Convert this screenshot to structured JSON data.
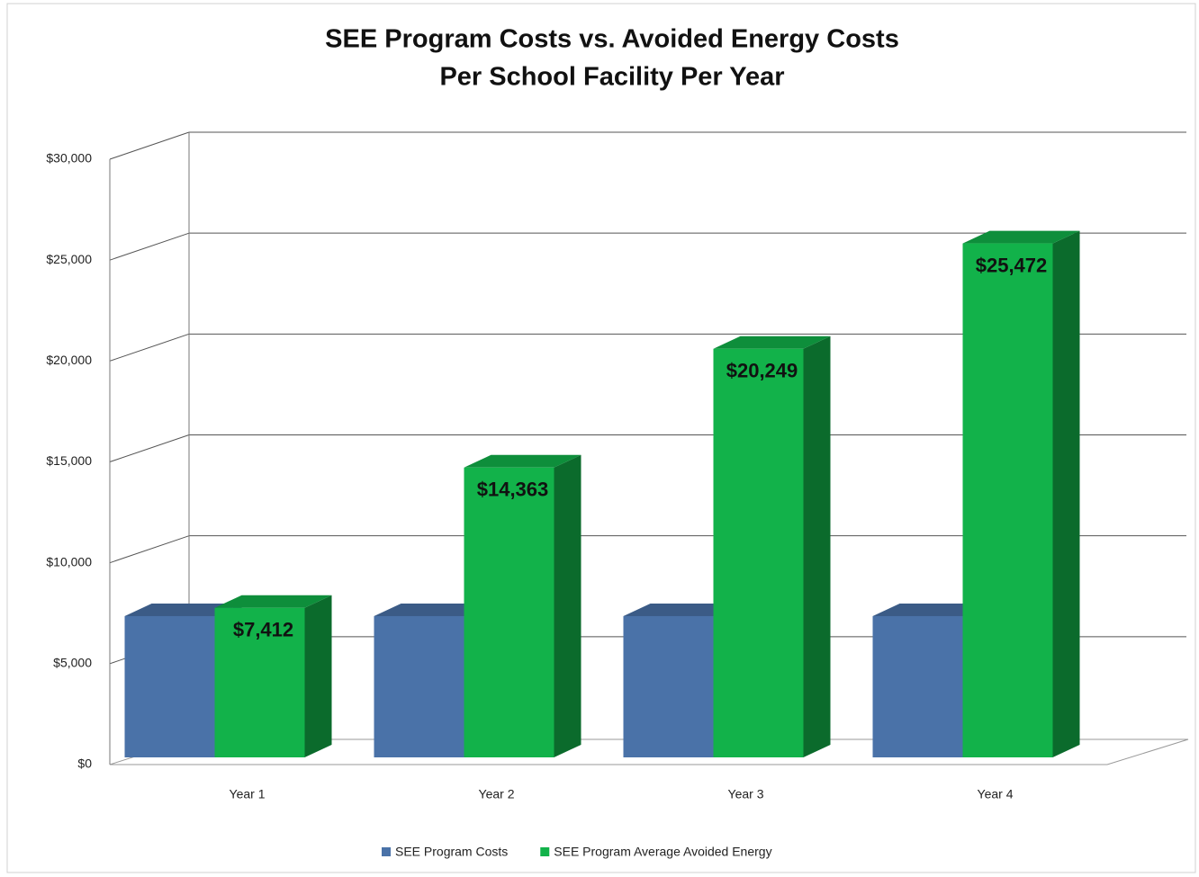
{
  "chart_data": {
    "type": "bar3d",
    "title": [
      "SEE Program Costs vs. Avoided Energy Costs",
      "Per School Facility Per Year"
    ],
    "categories": [
      "Year 1",
      "Year 2",
      "Year 3",
      "Year 4"
    ],
    "series": [
      {
        "name": "SEE Program Costs",
        "color": "#4a72a8",
        "values": [
          7000,
          7000,
          7000,
          7000
        ]
      },
      {
        "name": "SEE Program Average Avoided Energy",
        "color": "#12b24a",
        "values": [
          7412,
          14363,
          20249,
          25472
        ],
        "value_labels": [
          "$7,412",
          "$14,363",
          "$20,249",
          "$25,472"
        ]
      }
    ],
    "ylim": [
      0,
      30000
    ],
    "yticks": [
      {
        "value": 0,
        "label": "$0"
      },
      {
        "value": 5000,
        "label": "$5,000"
      },
      {
        "value": 10000,
        "label": "$10,000"
      },
      {
        "value": 15000,
        "label": "$15,000"
      },
      {
        "value": 20000,
        "label": "$20,000"
      },
      {
        "value": 25000,
        "label": "$25,000"
      },
      {
        "value": 30000,
        "label": "$30,000"
      }
    ],
    "grid": true,
    "legend": "bottom"
  }
}
